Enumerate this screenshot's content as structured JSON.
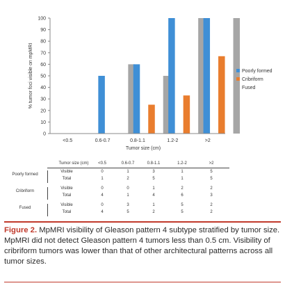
{
  "chart_data": {
    "type": "bar",
    "categories": [
      "<0.5",
      "0.6-0.7",
      "0.8-1.1",
      "1.2-2",
      ">2"
    ],
    "series": [
      {
        "name": "Poorly formed",
        "color": "#3f8fd6",
        "values": [
          0,
          50,
          60,
          100,
          100
        ]
      },
      {
        "name": "Cribriform",
        "color": "#e97d2e",
        "values": [
          0,
          0,
          25,
          33,
          67
        ]
      },
      {
        "name": "Fused",
        "color": "#a6a6a6",
        "values": [
          0,
          60,
          50,
          100,
          100
        ]
      }
    ],
    "title": "",
    "xlabel": "Tumor size (cm)",
    "ylabel": "% tumor foci visible on mpMRI",
    "ylim": [
      0,
      100
    ],
    "yticks": [
      "0",
      "10",
      "20",
      "30",
      "40",
      "50",
      "60",
      "70",
      "80",
      "90",
      "100"
    ],
    "grid": false,
    "legend_position": "right"
  },
  "table": {
    "header_label": "Tumor size (cm)",
    "columns": [
      "<0.5",
      "0.6-0.7",
      "0.8-1.1",
      "1.2-2",
      ">2"
    ],
    "groups": [
      {
        "name": "Poorly formed",
        "rows": [
          {
            "label": "Visible",
            "values": [
              "0",
              "1",
              "3",
              "1",
              "5"
            ]
          },
          {
            "label": "Total",
            "values": [
              "1",
              "2",
              "5",
              "1",
              "5"
            ]
          }
        ]
      },
      {
        "name": "Cribriform",
        "rows": [
          {
            "label": "Visible",
            "values": [
              "0",
              "0",
              "1",
              "2",
              "2"
            ]
          },
          {
            "label": "Total",
            "values": [
              "4",
              "1",
              "4",
              "6",
              "3"
            ]
          }
        ]
      },
      {
        "name": "Fused",
        "rows": [
          {
            "label": "Visible",
            "values": [
              "0",
              "3",
              "1",
              "5",
              "2"
            ]
          },
          {
            "label": "Total",
            "values": [
              "4",
              "5",
              "2",
              "5",
              "2"
            ]
          }
        ]
      }
    ]
  },
  "caption": {
    "label": "Figure 2.",
    "text": " MpMRI visibility of Gleason pattern 4 subtype stratified by tumor size. MpMRI did not detect Gleason pattern 4 tumors less than 0.5 cm. Visibility of cribriform tumors was lower than that of other architectural patterns across all tumor sizes."
  },
  "colors": {
    "accent": "#c0392b"
  }
}
